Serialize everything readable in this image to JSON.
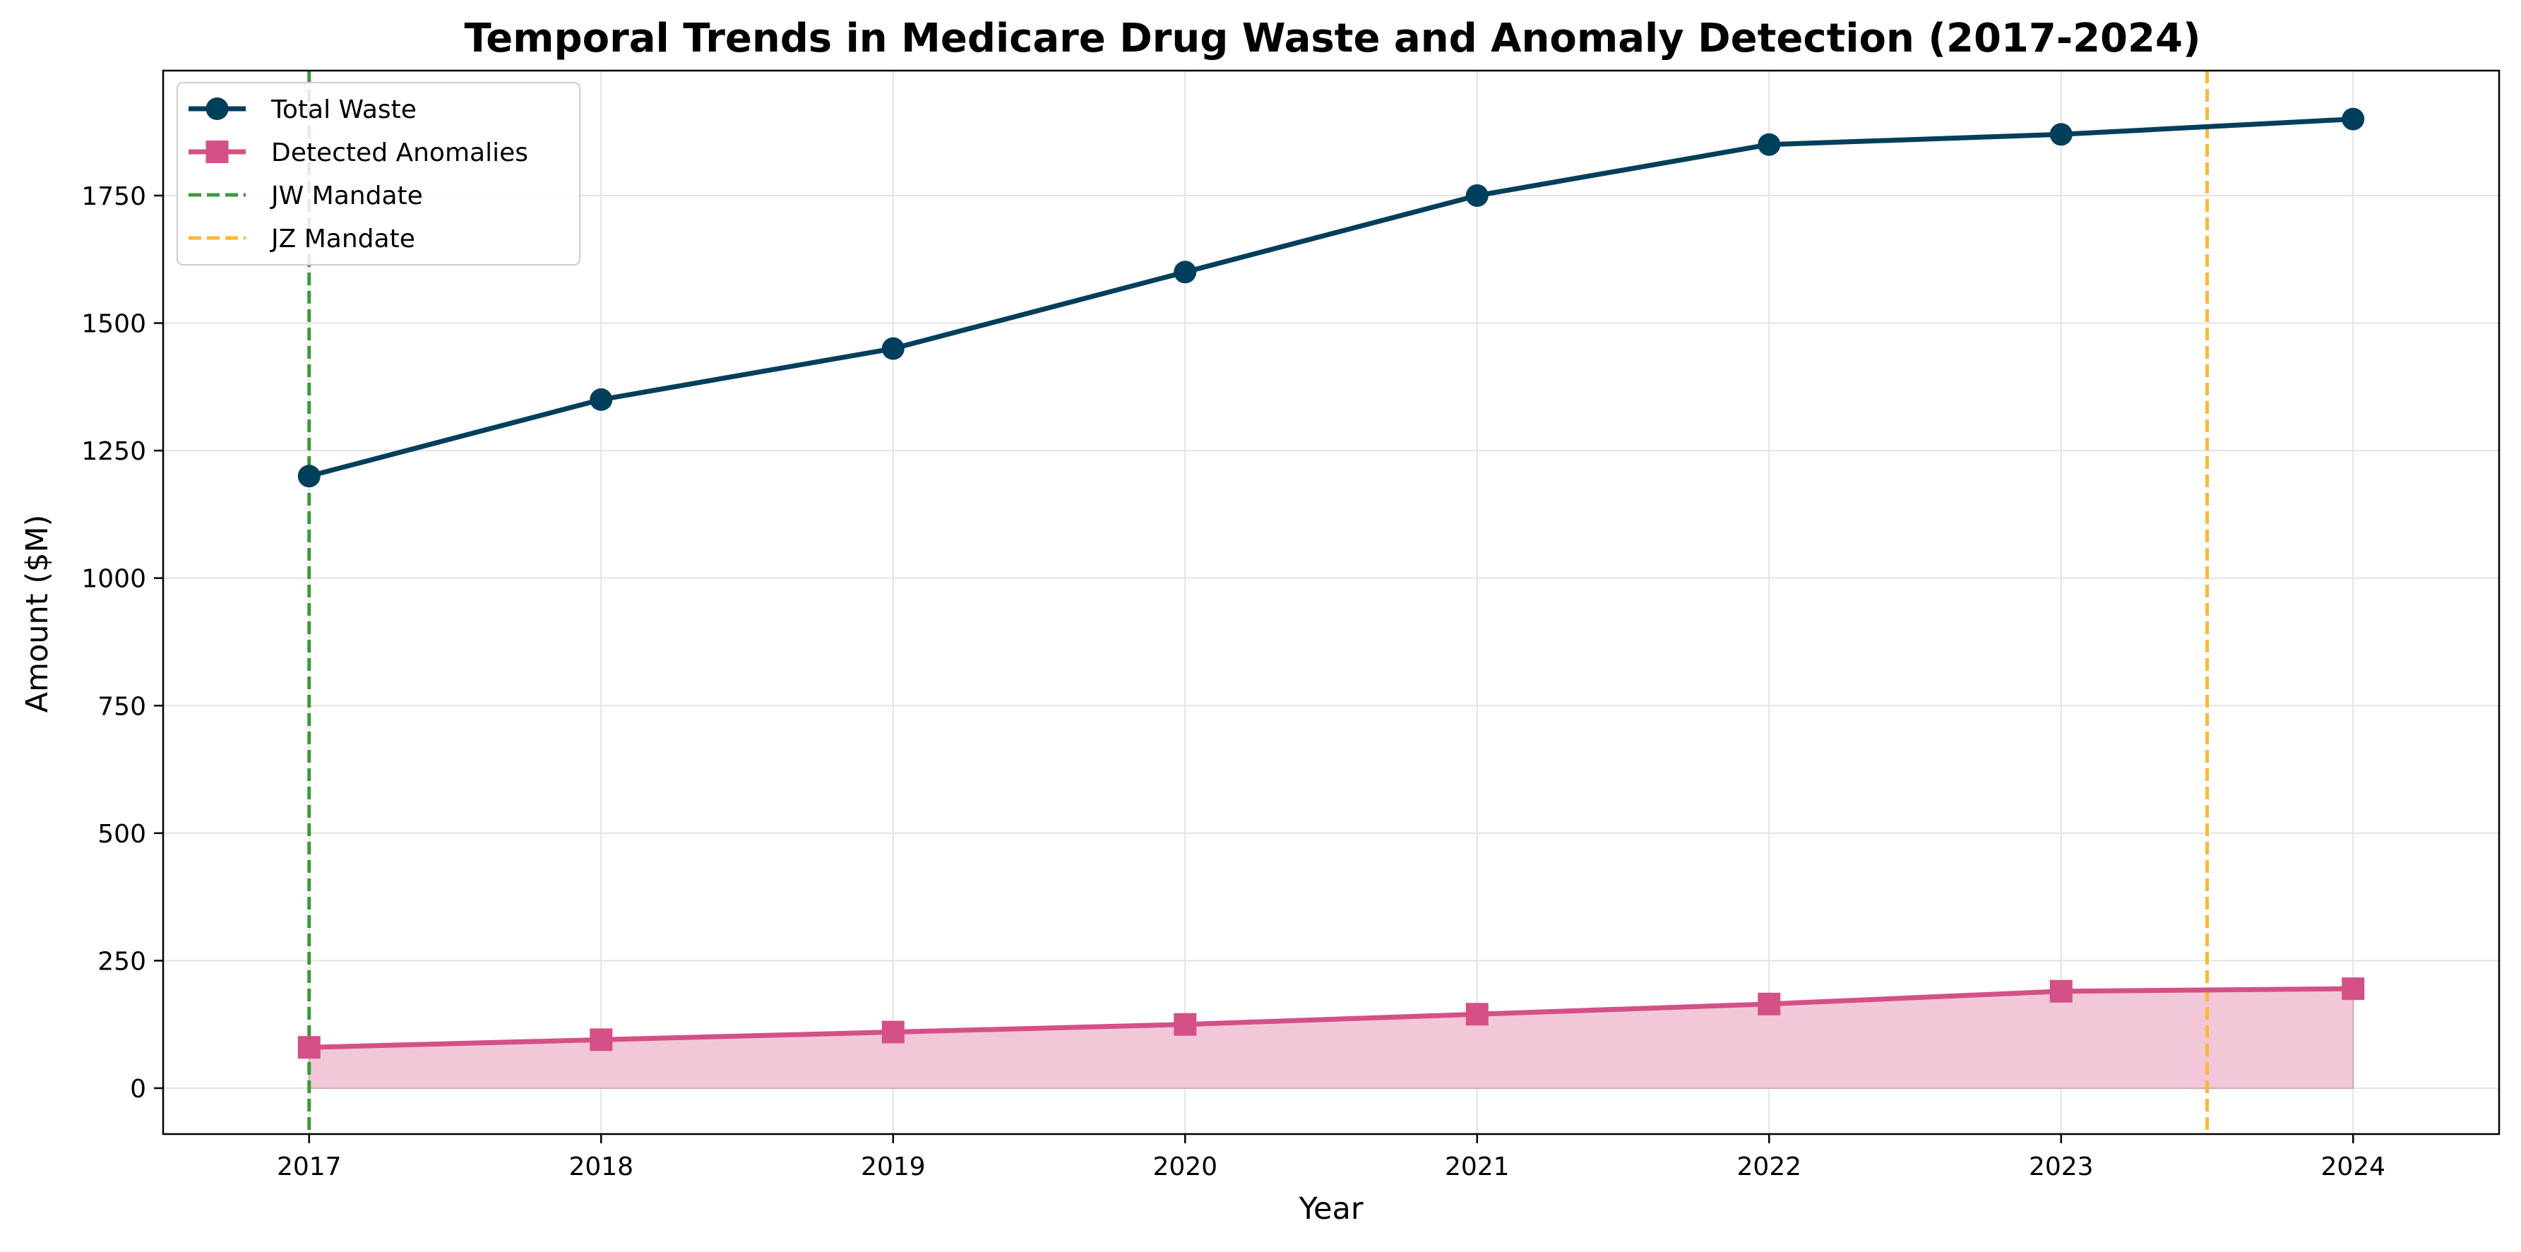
{
  "chart_data": {
    "type": "line",
    "title": "Temporal Trends in Medicare Drug Waste and Anomaly Detection (2017-2024)",
    "xlabel": "Year",
    "ylabel": "Amount ($M)",
    "x": [
      2017,
      2018,
      2019,
      2020,
      2021,
      2022,
      2023,
      2024
    ],
    "x_tick_labels": [
      "2017",
      "2018",
      "2019",
      "2020",
      "2021",
      "2022",
      "2023",
      "2024"
    ],
    "xlim": [
      2016.5,
      2024.5
    ],
    "ylim": [
      -90,
      1995
    ],
    "y_ticks": [
      0,
      250,
      500,
      750,
      1000,
      1250,
      1500,
      1750
    ],
    "y_tick_labels": [
      "0",
      "250",
      "500",
      "750",
      "1000",
      "1250",
      "1500",
      "1750"
    ],
    "grid": true,
    "legend_position": "top-left",
    "series": [
      {
        "name": "Total Waste",
        "values": [
          1200,
          1350,
          1450,
          1600,
          1750,
          1850,
          1870,
          1900
        ],
        "color": "#003f5c",
        "marker": "circle",
        "fill": false
      },
      {
        "name": "Detected Anomalies",
        "values": [
          80,
          95,
          110,
          125,
          145,
          165,
          190,
          195
        ],
        "color": "#d45087",
        "marker": "square",
        "fill": true,
        "fill_color": "#f2c8d8"
      }
    ],
    "vertical_lines": [
      {
        "name": "JW Mandate",
        "x": 2017,
        "color": "#3a9a3a",
        "style": "dashed"
      },
      {
        "name": "JZ Mandate",
        "x": 2023.5,
        "color": "#ffb833",
        "style": "dashed"
      }
    ]
  }
}
